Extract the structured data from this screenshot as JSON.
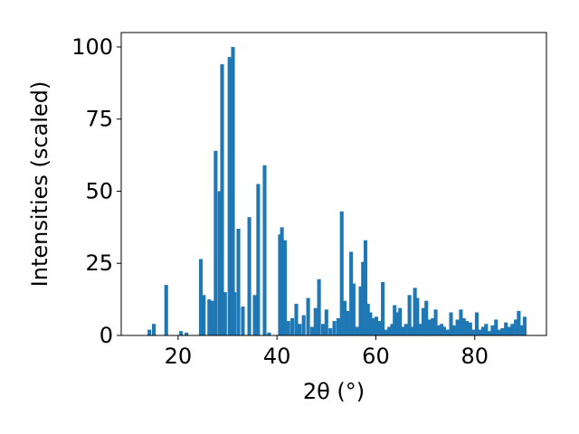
{
  "chart_data": {
    "type": "bar",
    "xlabel": "2θ (°)",
    "ylabel": "Intensities (scaled)",
    "xlim": [
      8.5,
      94.5
    ],
    "ylim": [
      0,
      105
    ],
    "xticks": [
      20,
      40,
      60,
      80
    ],
    "yticks": [
      0,
      25,
      50,
      75,
      100
    ],
    "bar_width": 0.75,
    "bar_color": "#1f77b4",
    "grid": false,
    "x": [
      14.2,
      15.1,
      17.6,
      20.6,
      21.7,
      24.6,
      25.2,
      26.3,
      26.9,
      27.6,
      28.4,
      28.9,
      29.5,
      30.4,
      31.1,
      31.4,
      32.2,
      33.1,
      34.4,
      35.5,
      36.2,
      37.5,
      38.4,
      40.6,
      41.0,
      41.6,
      42.3,
      43.1,
      43.9,
      44.6,
      45.4,
      46.3,
      47.1,
      47.8,
      48.5,
      49.3,
      50.0,
      50.8,
      51.6,
      52.4,
      53.1,
      53.7,
      54.3,
      55.0,
      55.5,
      56.2,
      56.9,
      57.4,
      57.9,
      58.4,
      58.9,
      59.5,
      60.1,
      60.8,
      61.4,
      62.1,
      62.7,
      63.3,
      63.8,
      64.3,
      64.9,
      65.5,
      66.1,
      66.8,
      67.3,
      67.9,
      68.4,
      69.0,
      69.6,
      70.2,
      70.8,
      71.5,
      72.1,
      72.7,
      73.3,
      73.8,
      74.5,
      75.2,
      75.8,
      76.5,
      77.2,
      77.8,
      78.4,
      79.1,
      79.7,
      80.4,
      81.1,
      81.7,
      82.3,
      82.9,
      83.6,
      84.3,
      85.0,
      85.6,
      86.3,
      86.9,
      87.6,
      88.3,
      88.9,
      89.5,
      90.1
    ],
    "values": [
      2.0,
      4.0,
      17.5,
      1.5,
      1.0,
      26.5,
      14.0,
      12.5,
      12.0,
      64.0,
      50.0,
      94.0,
      15.0,
      96.5,
      100.0,
      15.0,
      37.0,
      10.0,
      41.0,
      14.0,
      52.5,
      59.0,
      1.0,
      35.0,
      37.5,
      33.0,
      5.0,
      6.0,
      11.0,
      4.0,
      7.0,
      13.0,
      3.0,
      9.5,
      19.5,
      4.0,
      9.0,
      2.5,
      5.0,
      6.0,
      43.0,
      12.0,
      8.5,
      29.0,
      18.0,
      3.0,
      17.0,
      25.5,
      33.0,
      11.0,
      8.0,
      6.0,
      6.5,
      5.0,
      18.5,
      2.0,
      3.0,
      4.0,
      10.5,
      8.0,
      9.5,
      3.0,
      4.0,
      14.0,
      3.0,
      16.5,
      13.0,
      4.0,
      9.5,
      12.0,
      5.5,
      6.0,
      9.0,
      3.5,
      4.0,
      3.0,
      2.0,
      8.0,
      3.5,
      5.5,
      9.0,
      6.0,
      5.0,
      4.5,
      2.0,
      8.0,
      2.0,
      3.0,
      4.0,
      1.5,
      3.5,
      5.5,
      2.0,
      2.5,
      4.5,
      3.0,
      4.0,
      5.5,
      8.5,
      3.5,
      6.5
    ]
  }
}
